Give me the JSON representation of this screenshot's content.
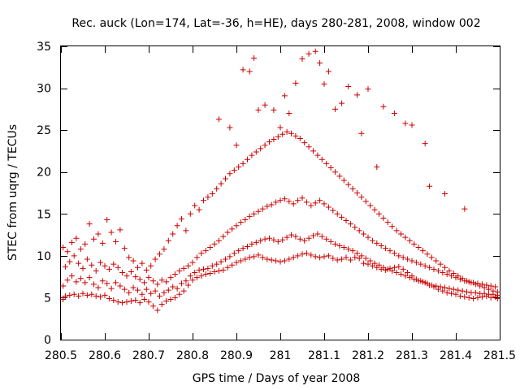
{
  "chart_data": {
    "type": "scatter",
    "title": "Rec. auck (Lon=174, Lat=-36, h=HE), days 280-281, 2008, window 002",
    "xlabel": "GPS time / Days of year 2008",
    "ylabel": "STEC from uqrg / TECUs",
    "xlim": [
      280.5,
      281.5
    ],
    "ylim": [
      0,
      35
    ],
    "xticks": [
      280.5,
      280.6,
      280.7,
      280.8,
      280.9,
      281.0,
      281.1,
      281.2,
      281.3,
      281.4,
      281.5
    ],
    "xtick_labels": [
      "280.5",
      "280.6",
      "280.7",
      "280.8",
      "280.9",
      "281",
      "281.1",
      "281.2",
      "281.3",
      "281.4",
      "281.5"
    ],
    "yticks": [
      0,
      5,
      10,
      15,
      20,
      25,
      30,
      35
    ],
    "ytick_labels": [
      "0",
      "5",
      "10",
      "15",
      "20",
      "25",
      "30",
      "35"
    ],
    "marker": "+",
    "color": "#cc0000",
    "series": [
      {
        "name": "STEC",
        "x": [
          280.505,
          280.51,
          280.52,
          280.53,
          280.54,
          280.55,
          280.56,
          280.57,
          280.58,
          280.59,
          280.6,
          280.61,
          280.62,
          280.63,
          280.64,
          280.65,
          280.66,
          280.67,
          280.68,
          280.69,
          280.7,
          280.71,
          280.72,
          280.73,
          280.74,
          280.75,
          280.76,
          280.77,
          280.78,
          280.79,
          280.8,
          280.81,
          280.82,
          280.83,
          280.84,
          280.85,
          280.86,
          280.87,
          280.88,
          280.89,
          280.9,
          280.91,
          280.92,
          280.93,
          280.94,
          280.95,
          280.96,
          280.97,
          280.98,
          280.99,
          281.0,
          281.01,
          281.02,
          281.03,
          281.04,
          281.05,
          281.06,
          281.07,
          281.08,
          281.09,
          281.1,
          281.11,
          281.12,
          281.13,
          281.14,
          281.15,
          281.16,
          281.17,
          281.18,
          281.19,
          281.2,
          281.21,
          281.22,
          281.23,
          281.24,
          281.25,
          281.26,
          281.27,
          281.28,
          281.29,
          281.3,
          281.31,
          281.32,
          281.33,
          281.34,
          281.35,
          281.36,
          281.37,
          281.38,
          281.39,
          281.4,
          281.41,
          281.42,
          281.43,
          281.44,
          281.45,
          281.46,
          281.47,
          281.48,
          281.49,
          281.495,
          280.505,
          280.515,
          280.525,
          280.535,
          280.545,
          280.555,
          280.565,
          280.575,
          280.585,
          280.595,
          280.605,
          280.615,
          280.625,
          280.635,
          280.645,
          280.655,
          280.665,
          280.675,
          280.685,
          280.695,
          280.705,
          280.715,
          280.725,
          280.735,
          280.745,
          280.755,
          280.765,
          280.775,
          280.785,
          280.795,
          280.805,
          280.815,
          280.825,
          280.835,
          280.845,
          280.855,
          280.865,
          280.875,
          280.885,
          280.895,
          280.905,
          280.915,
          280.925,
          280.935,
          280.945,
          280.955,
          280.965,
          280.975,
          280.985,
          280.995,
          281.005,
          281.015,
          281.025,
          281.035,
          281.045,
          281.055,
          281.065,
          281.075,
          281.085,
          281.095,
          281.105,
          281.115,
          281.125,
          281.135,
          281.145,
          281.155,
          281.165,
          281.175,
          281.185,
          281.195,
          281.205,
          281.215,
          281.225,
          281.235,
          281.245,
          281.255,
          281.265,
          281.275,
          281.285,
          281.295,
          281.305,
          281.315,
          281.325,
          281.335,
          281.345,
          281.355,
          281.365,
          281.375,
          281.385,
          281.395,
          281.405,
          281.415,
          281.425,
          281.435,
          281.445,
          281.455,
          281.465,
          281.475,
          281.485,
          281.495,
          280.51,
          280.52,
          280.53,
          280.54,
          280.55,
          280.56,
          280.57,
          280.58,
          280.59,
          280.6,
          280.61,
          280.62,
          280.63,
          280.64,
          280.65,
          280.66,
          280.67,
          280.68,
          280.69,
          280.7,
          280.71,
          280.72,
          280.73,
          280.74,
          280.75,
          280.76,
          280.77,
          280.78,
          280.79,
          280.8,
          280.81,
          280.82,
          280.83,
          280.84,
          280.85,
          280.86,
          280.87,
          280.88,
          280.89,
          280.9,
          280.91,
          280.92,
          280.93,
          280.94,
          280.95,
          280.96,
          280.97,
          280.98,
          280.99,
          281.0,
          281.01,
          281.02,
          281.03,
          281.04,
          281.05,
          281.06,
          281.07,
          281.08,
          281.09,
          281.1,
          281.11,
          281.12,
          281.13,
          281.14,
          281.15,
          281.16,
          281.17,
          281.18,
          281.19,
          281.2,
          281.21,
          281.22,
          281.23,
          281.24,
          281.25,
          281.26,
          281.27,
          281.28,
          281.29,
          281.3,
          281.31,
          281.32,
          281.33,
          281.34,
          281.35,
          281.36,
          281.37,
          281.38,
          281.39,
          281.4,
          281.41,
          281.42,
          281.43,
          281.44,
          281.45,
          281.46,
          281.47,
          281.48,
          281.49,
          280.505,
          280.515,
          280.525,
          280.535,
          280.545,
          280.555,
          280.565,
          280.575,
          280.585,
          280.595,
          280.605,
          280.615,
          280.625,
          280.635,
          280.645,
          280.655,
          280.665,
          280.675,
          280.685,
          280.695,
          280.705,
          280.715,
          280.725,
          280.735,
          280.745,
          280.755,
          280.765,
          280.775,
          280.785,
          280.795,
          280.805,
          280.815,
          280.825,
          280.835,
          280.845,
          280.855,
          280.865,
          280.875,
          280.885,
          280.895,
          280.905,
          280.915,
          280.925,
          280.935,
          280.945,
          280.955,
          280.965,
          280.975,
          280.985,
          280.995,
          281.005,
          281.015,
          281.025,
          281.035,
          281.045,
          281.055,
          281.065,
          281.075,
          281.085,
          281.095,
          281.105,
          281.115,
          281.125,
          281.135,
          281.145,
          281.155,
          281.165,
          281.175,
          281.185,
          281.195,
          281.205,
          281.215,
          281.225,
          281.235,
          281.245,
          281.255,
          281.265,
          281.275,
          281.285,
          281.295,
          281.305,
          281.315,
          281.325,
          281.335,
          281.345,
          281.355,
          281.365,
          281.375,
          281.385,
          281.395,
          281.405,
          281.415,
          281.425,
          281.435,
          281.445,
          281.455,
          281.465,
          281.475,
          281.485,
          281.495,
          280.86,
          280.885,
          280.9,
          280.915,
          280.93,
          280.94,
          280.95,
          280.965,
          280.985,
          281.0,
          281.01,
          281.02,
          281.035,
          281.05,
          281.065,
          281.08,
          281.09,
          281.1,
          281.11,
          281.125,
          281.14,
          281.155,
          281.175,
          281.185,
          281.2,
          281.22,
          281.235,
          281.26,
          281.285,
          281.3,
          281.33,
          281.34,
          281.375,
          281.42
        ],
        "y": [
          4.8,
          5.2,
          5.3,
          5.4,
          5.2,
          5.5,
          5.3,
          5.4,
          5.2,
          5.1,
          5.3,
          4.9,
          4.7,
          4.5,
          4.4,
          4.5,
          4.6,
          4.7,
          4.4,
          4.8,
          4.5,
          4.0,
          3.5,
          4.2,
          4.6,
          4.8,
          5.0,
          5.4,
          5.8,
          6.5,
          7.1,
          7.4,
          7.6,
          7.8,
          7.9,
          8.1,
          8.2,
          8.3,
          8.6,
          8.9,
          9.2,
          9.4,
          9.6,
          9.8,
          9.9,
          10.1,
          9.8,
          9.6,
          9.5,
          9.4,
          9.3,
          9.4,
          9.6,
          9.8,
          10.0,
          10.2,
          10.3,
          10.1,
          9.9,
          9.8,
          9.9,
          10.0,
          9.7,
          9.5,
          9.6,
          9.8,
          9.5,
          9.8,
          9.7,
          9.1,
          9.0,
          8.8,
          8.6,
          8.4,
          8.3,
          8.5,
          8.6,
          8.7,
          8.4,
          8.0,
          7.6,
          7.2,
          7.0,
          6.8,
          6.5,
          6.3,
          6.0,
          5.8,
          5.6,
          5.5,
          5.4,
          5.2,
          5.1,
          5.0,
          4.9,
          5.0,
          5.1,
          5.2,
          5.0,
          5.1,
          4.9,
          6.4,
          7.1,
          7.6,
          6.9,
          7.3,
          6.8,
          7.4,
          6.6,
          6.2,
          7.0,
          6.7,
          6.1,
          6.8,
          6.4,
          6.0,
          5.6,
          6.2,
          5.9,
          5.4,
          6.0,
          5.5,
          5.8,
          5.2,
          5.6,
          5.9,
          6.3,
          6.1,
          6.7,
          7.0,
          7.6,
          8.0,
          8.3,
          8.4,
          8.5,
          8.8,
          9.0,
          9.3,
          9.6,
          9.9,
          10.3,
          10.6,
          10.9,
          11.1,
          11.4,
          11.6,
          11.8,
          12.0,
          12.1,
          11.9,
          11.7,
          11.9,
          12.2,
          12.5,
          12.3,
          12.0,
          11.8,
          12.1,
          12.4,
          12.6,
          12.3,
          12.0,
          11.7,
          11.4,
          11.2,
          11.0,
          10.8,
          10.6,
          10.3,
          10.0,
          9.7,
          9.4,
          9.1,
          8.9,
          8.6,
          8.4,
          8.2,
          8.0,
          7.8,
          7.6,
          7.4,
          7.2,
          7.0,
          6.9,
          6.7,
          6.5,
          6.4,
          6.3,
          6.2,
          6.1,
          6.0,
          5.9,
          5.8,
          5.7,
          5.6,
          5.6,
          5.5,
          5.5,
          5.4,
          5.4,
          5.3,
          8.7,
          9.3,
          10.0,
          9.1,
          8.5,
          9.6,
          8.9,
          8.2,
          9.2,
          8.8,
          8.4,
          9.0,
          8.6,
          8.0,
          7.6,
          8.1,
          7.5,
          7.2,
          6.8,
          7.4,
          7.0,
          6.6,
          7.1,
          6.9,
          7.4,
          7.8,
          8.2,
          8.5,
          8.8,
          9.2,
          9.8,
          10.3,
          10.6,
          11.0,
          11.4,
          11.8,
          12.3,
          12.8,
          13.2,
          13.6,
          14.0,
          14.3,
          14.7,
          15.0,
          15.3,
          15.6,
          15.9,
          16.1,
          16.4,
          16.6,
          16.8,
          16.5,
          16.2,
          16.6,
          16.9,
          16.4,
          16.0,
          16.3,
          16.6,
          16.2,
          15.8,
          15.4,
          15.0,
          14.6,
          14.2,
          13.8,
          13.4,
          13.0,
          12.6,
          12.2,
          11.8,
          11.5,
          11.2,
          10.9,
          10.6,
          10.3,
          10.0,
          9.8,
          9.6,
          9.4,
          9.2,
          9.0,
          8.8,
          8.6,
          8.4,
          8.2,
          8.0,
          7.8,
          7.6,
          7.4,
          7.2,
          7.0,
          6.9,
          6.8,
          6.7,
          6.6,
          6.5,
          6.4,
          6.3,
          11.0,
          10.5,
          11.6,
          12.1,
          10.8,
          11.4,
          13.8,
          12.0,
          12.6,
          11.5,
          14.3,
          12.8,
          11.7,
          13.1,
          10.9,
          9.8,
          9.4,
          8.6,
          9.1,
          8.3,
          8.8,
          9.6,
          10.2,
          10.8,
          11.8,
          12.6,
          13.6,
          14.4,
          13.0,
          15.0,
          16.0,
          15.5,
          16.6,
          17.0,
          17.4,
          18.0,
          18.6,
          19.2,
          19.8,
          20.2,
          20.6,
          21.0,
          21.5,
          22.0,
          22.4,
          22.8,
          23.2,
          23.6,
          23.9,
          24.2,
          24.5,
          24.8,
          24.6,
          24.3,
          24.0,
          23.5,
          23.0,
          22.5,
          22.0,
          21.5,
          21.0,
          20.5,
          20.0,
          19.5,
          19.0,
          18.5,
          18.0,
          17.5,
          17.0,
          16.5,
          16.0,
          15.5,
          15.0,
          14.5,
          14.0,
          13.5,
          13.0,
          12.6,
          12.2,
          11.8,
          11.4,
          11.0,
          10.6,
          10.2,
          9.8,
          9.4,
          9.0,
          8.6,
          8.2,
          7.9,
          7.6,
          7.3,
          7.0,
          6.8,
          6.6,
          6.4,
          6.2,
          6.0,
          5.8,
          5.7,
          26.3,
          25.3,
          23.2,
          32.2,
          32.0,
          33.6,
          27.4,
          28.0,
          27.4,
          25.3,
          29.1,
          27.0,
          30.6,
          33.5,
          34.1,
          34.4,
          33.0,
          30.5,
          32.0,
          27.5,
          28.2,
          30.2,
          29.2,
          24.6,
          29.9,
          20.6,
          27.8,
          27.0,
          25.8,
          25.6,
          23.4,
          18.3,
          17.4,
          15.6
        ]
      }
    ]
  }
}
